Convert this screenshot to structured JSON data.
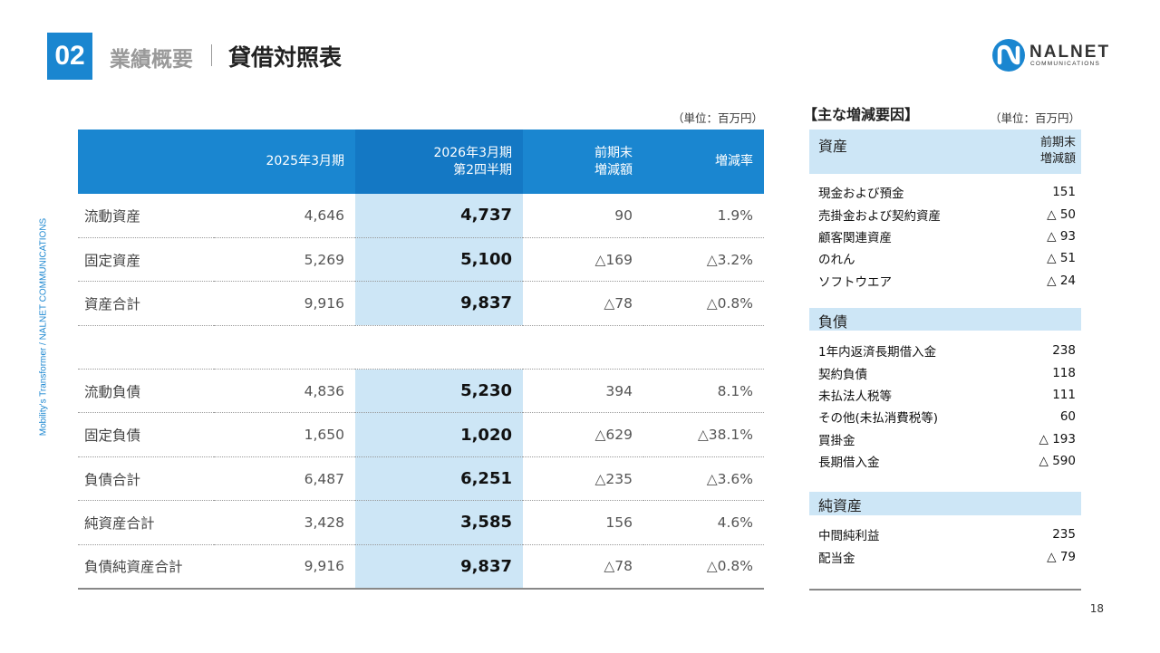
{
  "header": {
    "section_number": "02",
    "section_category": "業績概要",
    "title": "貸借対照表"
  },
  "logo": {
    "name": "NALNET",
    "subtitle": "COMMUNICATIONS"
  },
  "side_text": "Mobility's Transformer / NALNET COMMUNICATIONS",
  "balance_sheet": {
    "unit": "（単位：百万円）",
    "columns": {
      "label": "",
      "prev": "2025年3月期",
      "current_line1": "2026年3月期",
      "current_line2": "第2四半期",
      "change_line1": "前期末",
      "change_line2": "増減額",
      "rate": "増減率"
    },
    "rows": [
      {
        "label": "流動資産",
        "prev": "4,646",
        "current": "4,737",
        "change": "90",
        "rate": "1.9%"
      },
      {
        "label": "固定資産",
        "prev": "5,269",
        "current": "5,100",
        "change": "△169",
        "rate": "△3.2%"
      },
      {
        "label": "資産合計",
        "prev": "9,916",
        "current": "9,837",
        "change": "△78",
        "rate": "△0.8%"
      },
      {
        "label": "流動負債",
        "prev": "4,836",
        "current": "5,230",
        "change": "394",
        "rate": "8.1%"
      },
      {
        "label": "固定負債",
        "prev": "1,650",
        "current": "1,020",
        "change": "△629",
        "rate": "△38.1%"
      },
      {
        "label": "負債合計",
        "prev": "6,487",
        "current": "6,251",
        "change": "△235",
        "rate": "△3.6%"
      },
      {
        "label": "純資産合計",
        "prev": "3,428",
        "current": "3,585",
        "change": "156",
        "rate": "4.6%"
      },
      {
        "label": "負債純資産合計",
        "prev": "9,916",
        "current": "9,837",
        "change": "△78",
        "rate": "△0.8%"
      }
    ]
  },
  "factors": {
    "title": "【主な増減要因】",
    "unit": "（単位：百万円）",
    "column_line1": "前期末",
    "column_line2": "増減額",
    "assets": {
      "label": "資産",
      "items": [
        {
          "name": "現金および預金",
          "value": "151"
        },
        {
          "name": "売掛金および契約資産",
          "value": "△ 50"
        },
        {
          "name": "顧客関連資産",
          "value": "△ 93"
        },
        {
          "name": "のれん",
          "value": "△ 51"
        },
        {
          "name": "ソフトウエア",
          "value": "△ 24"
        }
      ]
    },
    "liabilities": {
      "label": "負債",
      "items": [
        {
          "name": "1年内返済長期借入金",
          "value": "238"
        },
        {
          "name": "契約負債",
          "value": "118"
        },
        {
          "name": "未払法人税等",
          "value": "111"
        },
        {
          "name": "その他(未払消費税等)",
          "value": "60"
        },
        {
          "name": "買掛金",
          "value": "△ 193"
        },
        {
          "name": "長期借入金",
          "value": "△ 590"
        }
      ]
    },
    "net_assets": {
      "label": "純資産",
      "items": [
        {
          "name": "中間純利益",
          "value": "235"
        },
        {
          "name": "配当金",
          "value": "△ 79"
        }
      ]
    }
  },
  "page_number": "18"
}
